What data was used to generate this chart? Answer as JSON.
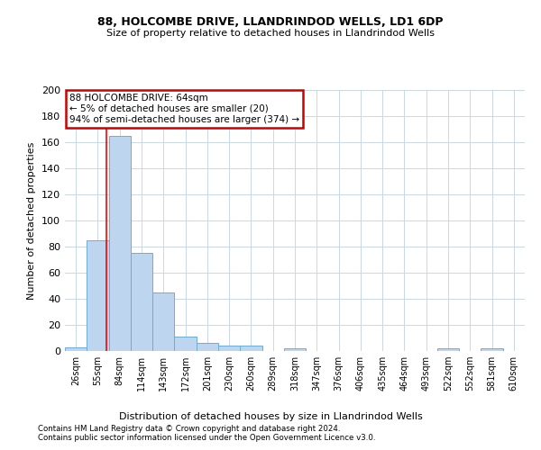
{
  "title1": "88, HOLCOMBE DRIVE, LLANDRINDOD WELLS, LD1 6DP",
  "title2": "Size of property relative to detached houses in Llandrindod Wells",
  "xlabel": "Distribution of detached houses by size in Llandrindod Wells",
  "ylabel": "Number of detached properties",
  "footnote1": "Contains HM Land Registry data © Crown copyright and database right 2024.",
  "footnote2": "Contains public sector information licensed under the Open Government Licence v3.0.",
  "bins": [
    "26sqm",
    "55sqm",
    "84sqm",
    "114sqm",
    "143sqm",
    "172sqm",
    "201sqm",
    "230sqm",
    "260sqm",
    "289sqm",
    "318sqm",
    "347sqm",
    "376sqm",
    "406sqm",
    "435sqm",
    "464sqm",
    "493sqm",
    "522sqm",
    "552sqm",
    "581sqm",
    "610sqm"
  ],
  "values": [
    3,
    85,
    165,
    75,
    45,
    11,
    6,
    4,
    4,
    0,
    2,
    0,
    0,
    0,
    0,
    0,
    0,
    2,
    0,
    2,
    0
  ],
  "bar_color": "#bdd5ee",
  "bar_edge_color": "#6aaed6",
  "red_line_x": 1.38,
  "annotation_line1": "88 HOLCOMBE DRIVE: 64sqm",
  "annotation_line2": "← 5% of detached houses are smaller (20)",
  "annotation_line3": "94% of semi-detached houses are larger (374) →",
  "annotation_box_color": "#ffffff",
  "annotation_box_edge_color": "#cc0000",
  "ylim": [
    0,
    200
  ],
  "yticks": [
    0,
    20,
    40,
    60,
    80,
    100,
    120,
    140,
    160,
    180,
    200
  ],
  "background_color": "#ffffff",
  "grid_color": "#c8d8e8"
}
